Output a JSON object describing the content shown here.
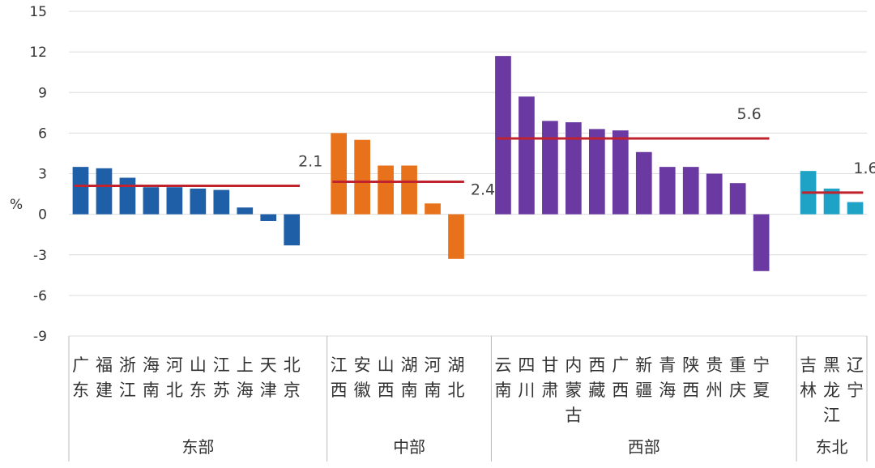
{
  "chart_data": {
    "type": "bar",
    "ylabel": "%",
    "ylim": [
      -9,
      15
    ],
    "yticks": [
      15,
      12,
      9,
      6,
      3,
      0,
      -3,
      -6,
      -9
    ],
    "grid": true,
    "legend": "none",
    "groups": [
      {
        "name": "东部",
        "color": "#1f5fa8",
        "average": 2.1,
        "average_label": "2.1",
        "categories": [
          "广东",
          "福建",
          "浙江",
          "海南",
          "河北",
          "山东",
          "江苏",
          "上海",
          "天津",
          "北京"
        ],
        "values": [
          3.5,
          3.4,
          2.7,
          2.0,
          2.0,
          1.9,
          1.8,
          0.5,
          -0.5,
          -2.3
        ]
      },
      {
        "name": "中部",
        "color": "#e8711c",
        "average": 2.4,
        "average_label": "2.4",
        "categories": [
          "江西",
          "安徽",
          "山西",
          "湖南",
          "河南",
          "湖北"
        ],
        "values": [
          6.0,
          5.5,
          3.6,
          3.6,
          0.8,
          -3.3
        ]
      },
      {
        "name": "西部",
        "color": "#6a3aa2",
        "average": 5.6,
        "average_label": "5.6",
        "categories": [
          "云南",
          "四川",
          "甘肃",
          "内蒙古",
          "西藏",
          "广西",
          "新疆",
          "青海",
          "陕西",
          "贵州",
          "重庆",
          "宁夏"
        ],
        "values": [
          11.7,
          8.7,
          6.9,
          6.8,
          6.3,
          6.2,
          4.6,
          3.5,
          3.5,
          3.0,
          2.3,
          -4.2
        ]
      },
      {
        "name": "东北",
        "color": "#1ea3c6",
        "average": 1.6,
        "average_label": "1.6",
        "categories": [
          "吉林",
          "黑龙江",
          "辽宁"
        ],
        "values": [
          3.2,
          1.9,
          0.9
        ]
      }
    ],
    "average_line_color": "#c0232e"
  }
}
